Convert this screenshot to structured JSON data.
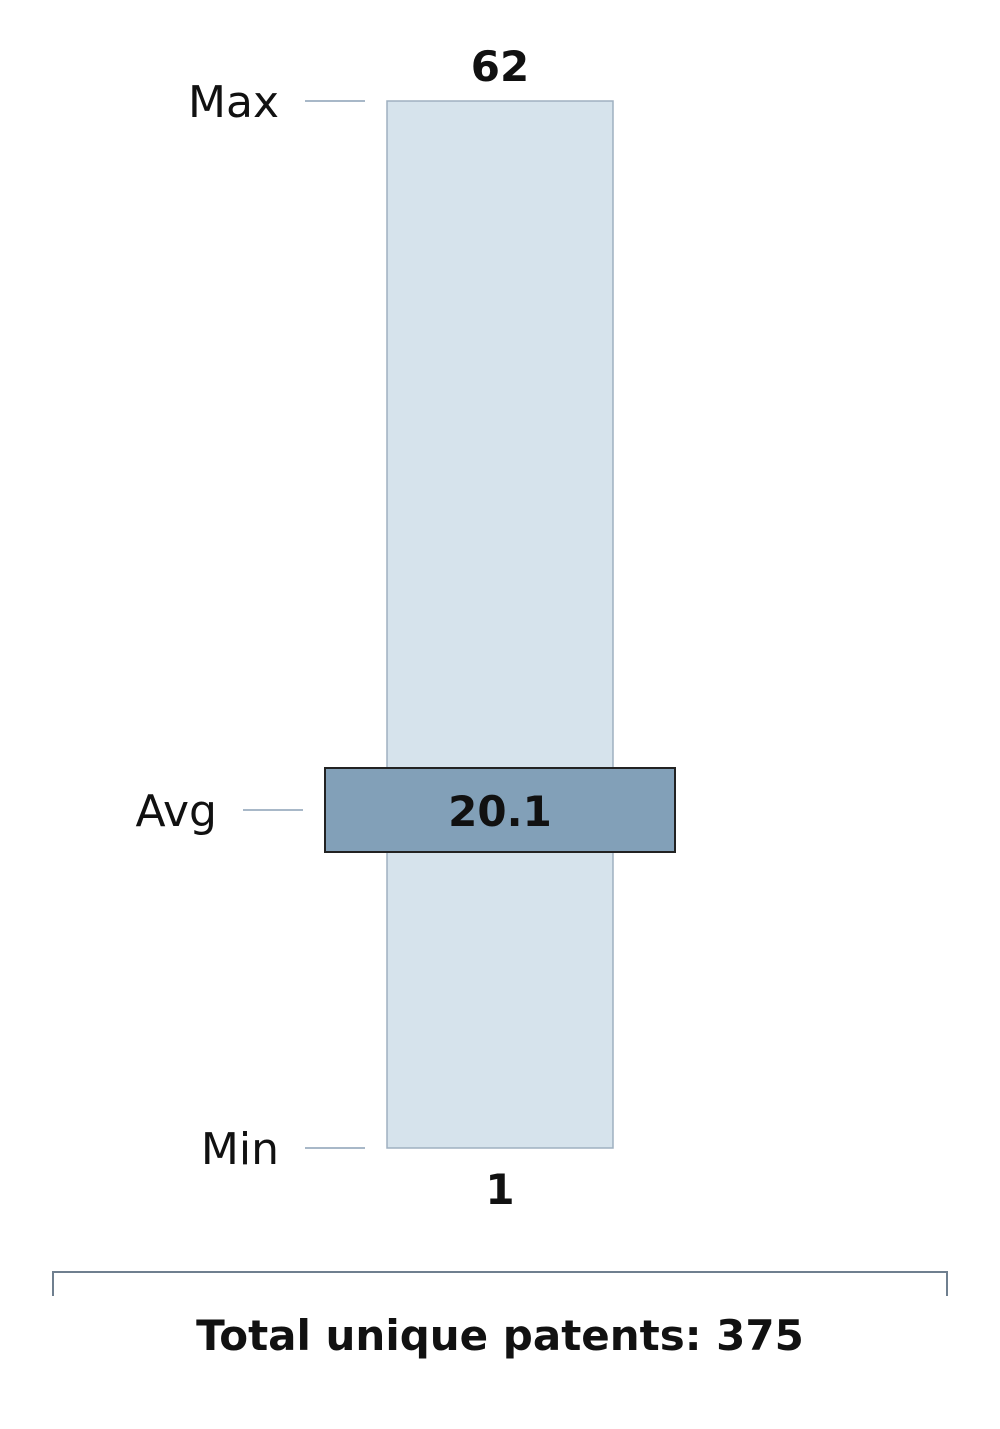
{
  "chart_data": {
    "type": "range-bar",
    "min": 1,
    "max": 62,
    "avg": 20.1,
    "labels": {
      "max": "Max",
      "avg": "Avg",
      "min": "Min"
    },
    "value_labels": {
      "max": "62",
      "avg": "20.1",
      "min": "1"
    },
    "footer": "Total unique patents: 375",
    "colors": {
      "range": "#d6e3ec",
      "range_border": "#9fb0c0",
      "avg": "#82a0b8",
      "avg_border": "#222222",
      "guide": "#a8b8c8"
    }
  }
}
